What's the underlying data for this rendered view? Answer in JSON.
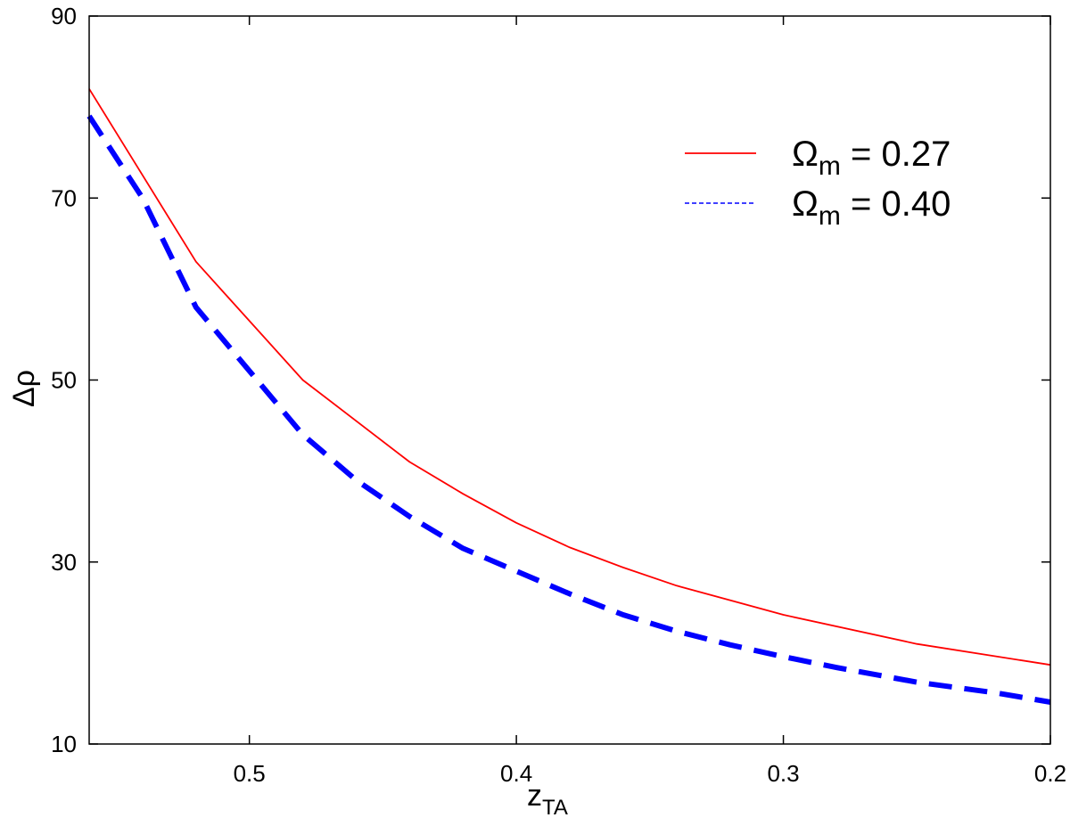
{
  "chart_data": {
    "type": "line",
    "title": "",
    "xlabel": {
      "main": "z",
      "sub": "TA"
    },
    "ylabel": "Δρ",
    "xlim": [
      0.56,
      0.2
    ],
    "ylim": [
      10,
      90
    ],
    "x_reversed": true,
    "x_ticks": [
      0.5,
      0.4,
      0.3,
      0.2
    ],
    "x_tick_labels": [
      "0.5",
      "0.4",
      "0.3",
      "0.2"
    ],
    "y_ticks": [
      10,
      30,
      50,
      70,
      90
    ],
    "y_tick_labels": [
      "10",
      "30",
      "50",
      "70",
      "90"
    ],
    "grid": false,
    "legend_position": "top-right",
    "series": [
      {
        "name": "Ω_m = 0.27",
        "legend": {
          "symbol": "Ω",
          "sub": "m",
          "rest": " = 0.27"
        },
        "color": "#ff0000",
        "style": "solid",
        "x": [
          0.56,
          0.52,
          0.48,
          0.44,
          0.42,
          0.4,
          0.38,
          0.36,
          0.34,
          0.32,
          0.3,
          0.25,
          0.2
        ],
        "y": [
          82,
          63,
          50,
          41,
          37.5,
          34.3,
          31.6,
          29.4,
          27.4,
          25.8,
          24.2,
          21,
          18.7
        ]
      },
      {
        "name": "Ω_m = 0.40",
        "legend": {
          "symbol": "Ω",
          "sub": "m",
          "rest": " = 0.40"
        },
        "color": "#0000ff",
        "style": "dashed",
        "x": [
          0.56,
          0.54,
          0.52,
          0.5,
          0.48,
          0.46,
          0.44,
          0.42,
          0.4,
          0.38,
          0.36,
          0.34,
          0.32,
          0.3,
          0.28,
          0.25,
          0.22,
          0.2
        ],
        "y": [
          79,
          70,
          58,
          51,
          44,
          39,
          35,
          31.5,
          29,
          26.5,
          24.2,
          22.4,
          20.9,
          19.6,
          18.4,
          16.8,
          15.6,
          14.6
        ]
      }
    ]
  }
}
